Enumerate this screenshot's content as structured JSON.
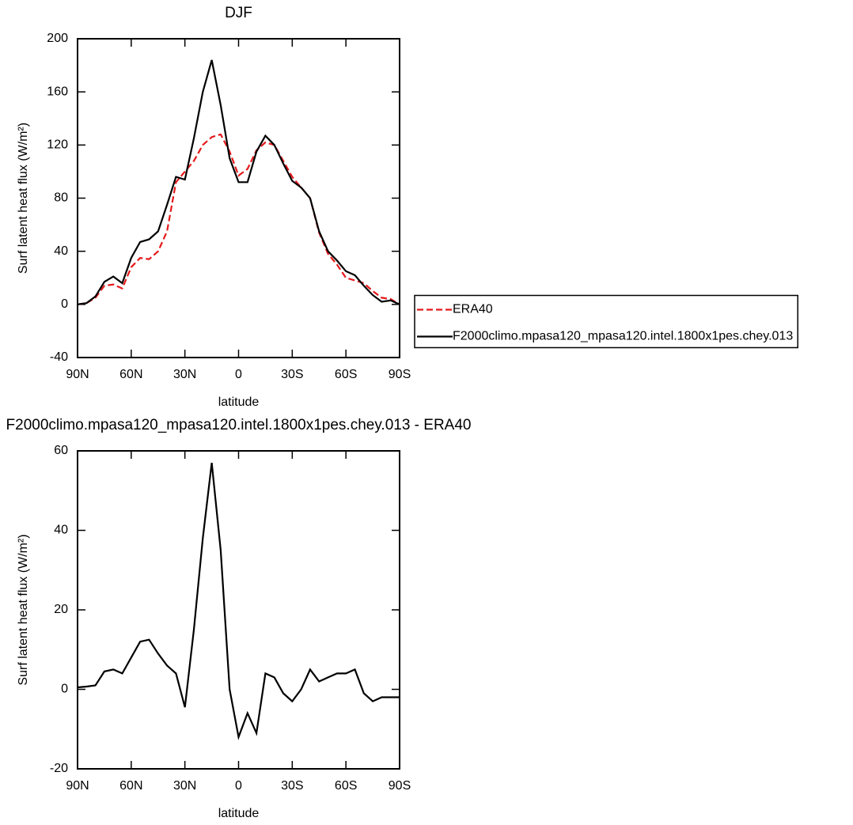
{
  "chart_data": [
    {
      "type": "line",
      "title": "DJF",
      "xlabel": "latitude",
      "ylabel": "Surf latent heat flux (W/m²)",
      "x": [
        90,
        85,
        80,
        75,
        70,
        65,
        60,
        55,
        50,
        45,
        40,
        35,
        30,
        25,
        20,
        15,
        10,
        5,
        0,
        -5,
        -10,
        -15,
        -20,
        -25,
        -30,
        -35,
        -40,
        -45,
        -50,
        -55,
        -60,
        -65,
        -70,
        -75,
        -80,
        -85,
        -90
      ],
      "series": [
        {
          "name": "ERA40",
          "color": "#e41a1c",
          "line_style": "dashed",
          "values": [
            0,
            1,
            5,
            14,
            15,
            12,
            28,
            35,
            34,
            40,
            55,
            92,
            100,
            108,
            120,
            126,
            128,
            115,
            97,
            102,
            116,
            122,
            120,
            108,
            96,
            88,
            80,
            54,
            38,
            30,
            20,
            18,
            16,
            10,
            5,
            4,
            0
          ]
        },
        {
          "name": "F2000climo.mpasa120_mpasa120.intel.1800x1pes.chey.013",
          "color": "#000000",
          "line_style": "solid",
          "values": [
            0,
            1,
            6,
            17,
            21,
            16,
            35,
            47,
            49,
            55,
            75,
            96,
            94,
            125,
            160,
            184,
            150,
            110,
            92,
            92,
            115,
            127,
            120,
            106,
            93,
            88,
            80,
            55,
            40,
            33,
            25,
            22,
            14,
            7,
            2,
            3,
            0
          ]
        }
      ],
      "xlim": [
        90,
        -90
      ],
      "xticks": [
        {
          "value": 90,
          "label": "90N"
        },
        {
          "value": 60,
          "label": "60N"
        },
        {
          "value": 30,
          "label": "30N"
        },
        0,
        {
          "value": -30,
          "label": "30S"
        },
        {
          "value": -60,
          "label": "60S"
        },
        {
          "value": -90,
          "label": "90S"
        }
      ],
      "ylim": [
        -40,
        200
      ],
      "yticks": [
        -40,
        0,
        40,
        80,
        120,
        160,
        200
      ],
      "legend": "right"
    },
    {
      "type": "line",
      "title": "F2000climo.mpasa120_mpasa120.intel.1800x1pes.chey.013 - ERA40",
      "xlabel": "latitude",
      "ylabel": "Surf latent heat flux (W/m²)",
      "x": [
        90,
        85,
        80,
        75,
        70,
        65,
        60,
        55,
        50,
        45,
        40,
        35,
        30,
        25,
        20,
        15,
        10,
        5,
        0,
        -5,
        -10,
        -15,
        -20,
        -25,
        -30,
        -35,
        -40,
        -45,
        -50,
        -55,
        -60,
        -65,
        -70,
        -75,
        -80,
        -85,
        -90
      ],
      "series": [
        {
          "color": "#000000",
          "line_style": "solid",
          "values": [
            0.5,
            0.7,
            1,
            4.5,
            5,
            4,
            8,
            12,
            12.5,
            9,
            6,
            4,
            -4.5,
            15,
            38,
            57,
            35,
            0,
            -12,
            -6,
            -11,
            4,
            3,
            -1,
            -3,
            0,
            5,
            2,
            3,
            4,
            4,
            5,
            -1,
            -3,
            -2,
            -2,
            -2
          ]
        }
      ],
      "xlim": [
        90,
        -90
      ],
      "xticks": [
        {
          "value": 90,
          "label": "90N"
        },
        {
          "value": 60,
          "label": "60N"
        },
        {
          "value": 30,
          "label": "30N"
        },
        0,
        {
          "value": -30,
          "label": "30S"
        },
        {
          "value": -60,
          "label": "60S"
        },
        {
          "value": -90,
          "label": "90S"
        }
      ],
      "ylim": [
        -20,
        60
      ],
      "yticks": [
        -20,
        0,
        20,
        40,
        60
      ]
    }
  ]
}
